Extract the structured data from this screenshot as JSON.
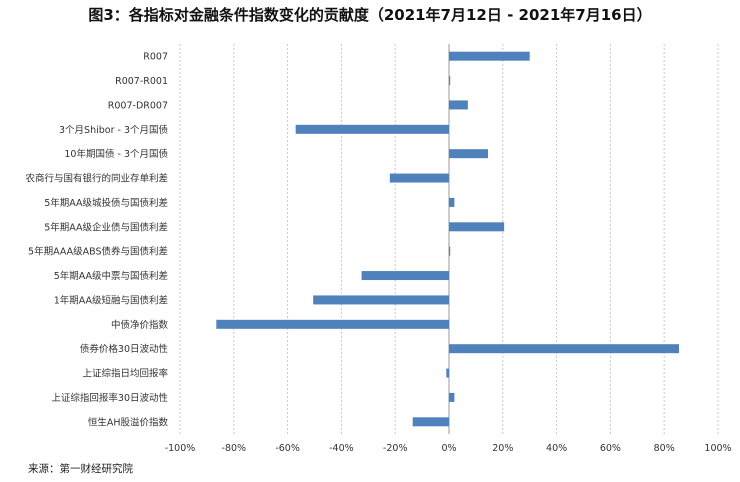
{
  "title": "图3：各指标对金融条件指数变化的贡献度（2021年7月12日 - 2021年7月16日）",
  "source": "来源：第一财经研究院",
  "chart_data": {
    "type": "bar",
    "orientation": "horizontal",
    "categories": [
      "R007",
      "R007-R001",
      "R007-DR007",
      "3个月Shibor - 3个月国债",
      "10年期国债 - 3个月国债",
      "农商行与国有银行的同业存单利差",
      "5年期AA级城投债与国债利差",
      "5年期AA级企业债与国债利差",
      "5年期AAA级ABS债券与国债利差",
      "5年期AA级中票与国债利差",
      "1年期AA级短融与国债利差",
      "中债净价指数",
      "债券价格30日波动性",
      "上证综指日均回报率",
      "上证综指回报率30日波动性",
      "恒生AH股溢价指数"
    ],
    "values": [
      30,
      0.3,
      7,
      -57,
      14.5,
      -22,
      2,
      20.5,
      0.3,
      -32.5,
      -50.5,
      -86.5,
      85.5,
      -1,
      2,
      -13.5
    ],
    "xlim": [
      -100,
      100
    ],
    "xticks": [
      -100,
      -80,
      -60,
      -40,
      -20,
      0,
      20,
      40,
      60,
      80,
      100
    ],
    "xtick_labels": [
      "-100%",
      "-80%",
      "-60%",
      "-40%",
      "-20%",
      "0%",
      "20%",
      "40%",
      "60%",
      "80%",
      "100%"
    ],
    "grid": "vertical dashed",
    "bar_color": "#4f81bd"
  }
}
